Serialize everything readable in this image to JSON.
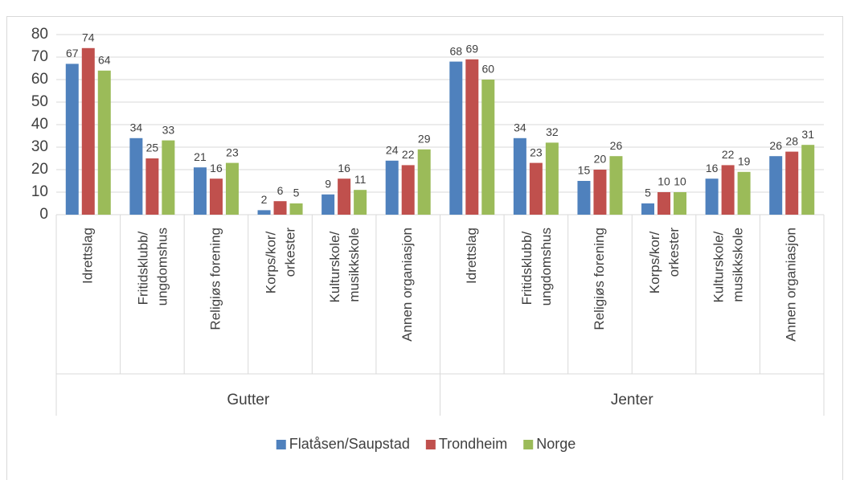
{
  "chart_data": {
    "type": "bar",
    "groups": [
      "Gutter",
      "Jenter"
    ],
    "categories": [
      "Idrettslag",
      "Fritidsklubb/ ungdomshus",
      "Religiøs forening",
      "Korps/kor/ orkester",
      "Kulturskole/ musikkskole",
      "Annen organiasjon",
      "Idrettslag",
      "Fritidsklubb/ ungdomshus",
      "Religiøs forening",
      "Korps/kor/ orkester",
      "Kulturskole/ musikkskole",
      "Annen organiasjon"
    ],
    "series": [
      {
        "name": "Flatåsen/Saupstad",
        "color": "#4f81bd",
        "values": [
          67,
          34,
          21,
          2,
          9,
          24,
          68,
          34,
          15,
          5,
          16,
          26
        ]
      },
      {
        "name": "Trondheim",
        "color": "#c0504d",
        "values": [
          74,
          25,
          16,
          6,
          16,
          22,
          69,
          23,
          20,
          10,
          22,
          28
        ]
      },
      {
        "name": "Norge",
        "color": "#9bbb59",
        "values": [
          64,
          33,
          23,
          5,
          11,
          29,
          60,
          32,
          26,
          10,
          19,
          31
        ]
      }
    ],
    "ylim": [
      0,
      80
    ],
    "yticks": [
      0,
      10,
      20,
      30,
      40,
      50,
      60,
      70,
      80
    ],
    "grid": true,
    "legend": "bottom"
  }
}
